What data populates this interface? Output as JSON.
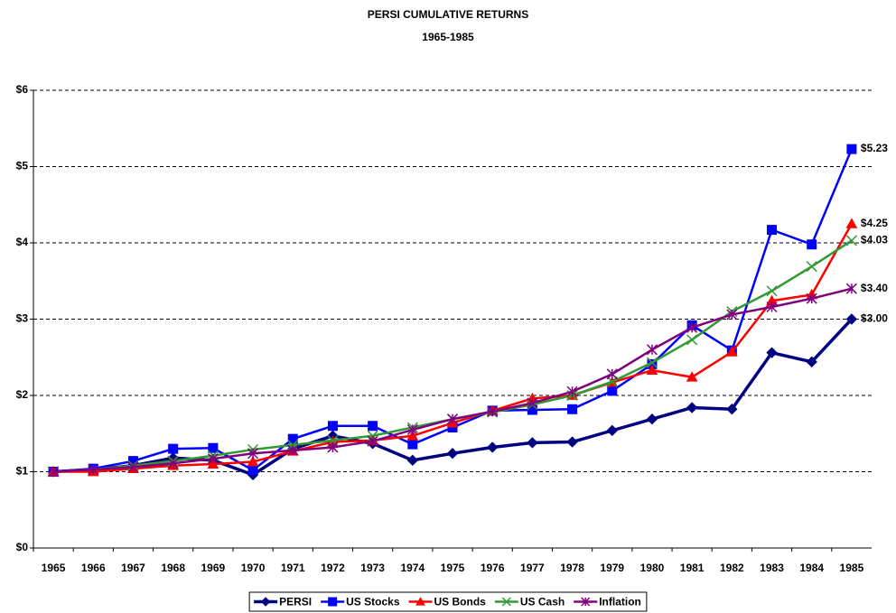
{
  "chart_data": {
    "type": "line",
    "title": "PERSI CUMULATIVE RETURNS",
    "subtitle": "1965-1985",
    "categories": [
      "1965",
      "1966",
      "1967",
      "1968",
      "1969",
      "1970",
      "1971",
      "1972",
      "1973",
      "1974",
      "1975",
      "1976",
      "1977",
      "1978",
      "1979",
      "1980",
      "1981",
      "1982",
      "1983",
      "1984",
      "1985"
    ],
    "series": [
      {
        "name": "PERSI",
        "color": "#000080",
        "marker": "diamond",
        "values": [
          1.0,
          1.03,
          1.08,
          1.18,
          1.15,
          0.96,
          1.3,
          1.47,
          1.37,
          1.15,
          1.24,
          1.32,
          1.38,
          1.39,
          1.54,
          1.69,
          1.84,
          1.82,
          2.56,
          2.44,
          3.0
        ],
        "value_labels": [
          null,
          null,
          null,
          null,
          null,
          null,
          null,
          null,
          null,
          null,
          null,
          null,
          null,
          null,
          null,
          null,
          null,
          null,
          null,
          null,
          "$3.00"
        ]
      },
      {
        "name": "US Stocks",
        "color": "#0000FF",
        "marker": "square",
        "values": [
          1.0,
          1.04,
          1.14,
          1.3,
          1.31,
          1.02,
          1.43,
          1.6,
          1.6,
          1.36,
          1.58,
          1.8,
          1.81,
          1.82,
          2.06,
          2.41,
          2.92,
          2.59,
          4.17,
          3.98,
          5.23
        ],
        "value_labels": [
          null,
          null,
          null,
          null,
          null,
          null,
          null,
          null,
          null,
          null,
          null,
          null,
          null,
          null,
          null,
          null,
          null,
          null,
          null,
          null,
          "$5.23"
        ]
      },
      {
        "name": "US Bonds",
        "color": "#FF0000",
        "marker": "triangle",
        "values": [
          1.0,
          1.0,
          1.04,
          1.08,
          1.1,
          1.13,
          1.27,
          1.39,
          1.41,
          1.47,
          1.64,
          1.8,
          1.96,
          2.0,
          2.17,
          2.33,
          2.24,
          2.57,
          3.24,
          3.32,
          4.25
        ],
        "value_labels": [
          null,
          null,
          null,
          null,
          null,
          null,
          null,
          null,
          null,
          null,
          null,
          null,
          null,
          null,
          null,
          null,
          null,
          null,
          null,
          null,
          "$4.25"
        ]
      },
      {
        "name": "US Cash",
        "color": "#339933",
        "marker": "x",
        "values": [
          1.0,
          1.03,
          1.08,
          1.14,
          1.21,
          1.29,
          1.35,
          1.41,
          1.47,
          1.58,
          1.69,
          1.78,
          1.88,
          2.0,
          2.18,
          2.43,
          2.73,
          3.1,
          3.37,
          3.69,
          4.03
        ],
        "value_labels": [
          null,
          null,
          null,
          null,
          null,
          null,
          null,
          null,
          null,
          null,
          null,
          null,
          null,
          null,
          null,
          null,
          null,
          null,
          null,
          null,
          "$4.03"
        ]
      },
      {
        "name": "Inflation",
        "color": "#800080",
        "marker": "star",
        "values": [
          1.0,
          1.03,
          1.06,
          1.11,
          1.17,
          1.24,
          1.28,
          1.32,
          1.4,
          1.55,
          1.69,
          1.79,
          1.9,
          2.05,
          2.28,
          2.6,
          2.89,
          3.06,
          3.16,
          3.27,
          3.4
        ],
        "value_labels": [
          null,
          null,
          null,
          null,
          null,
          null,
          null,
          null,
          null,
          null,
          null,
          null,
          null,
          null,
          null,
          null,
          null,
          null,
          null,
          null,
          "$3.40"
        ]
      }
    ],
    "ylim": [
      0,
      6
    ],
    "yticks": [
      {
        "value": 0,
        "label": "$0"
      },
      {
        "value": 1,
        "label": "$1"
      },
      {
        "value": 2,
        "label": "$2"
      },
      {
        "value": 3,
        "label": "$3"
      },
      {
        "value": 4,
        "label": "$4"
      },
      {
        "value": 5,
        "label": "$5"
      },
      {
        "value": 6,
        "label": "$6"
      }
    ],
    "grid": true,
    "legend": "bottom"
  }
}
